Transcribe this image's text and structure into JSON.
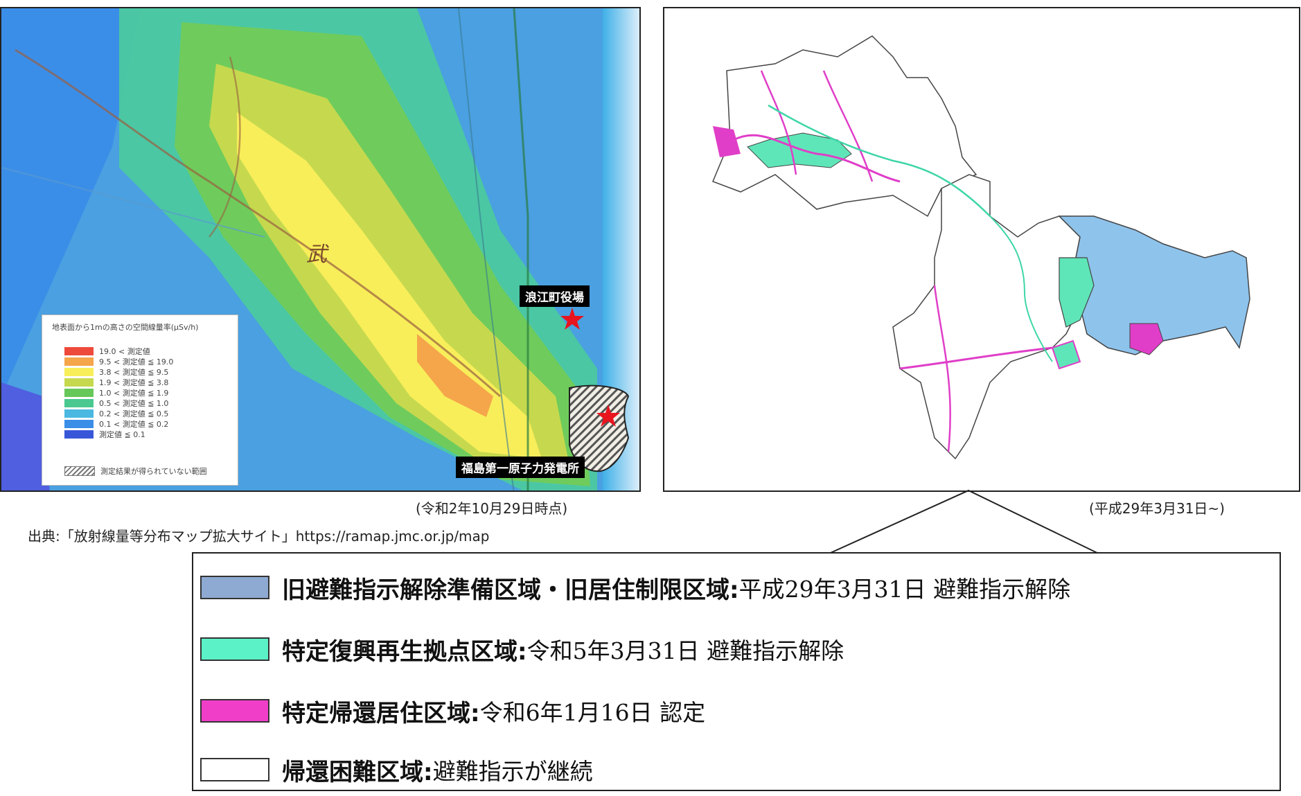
{
  "left_map": {
    "labels": {
      "town_hall": "浪江町役場",
      "nuclear_plant": "福島第一原子力発電所",
      "kanji": "武"
    },
    "legend": {
      "title": "地表面から1mの高さの空間線量率(μSv/h)",
      "rows": [
        {
          "text": "19.0 < 測定値",
          "color": "#ee4a3c"
        },
        {
          "text": "9.5 < 測定値 ≦ 19.0",
          "color": "#f5a54a"
        },
        {
          "text": "3.8 < 測定値 ≦ 9.5",
          "color": "#f8ee5a"
        },
        {
          "text": "1.9 < 測定値 ≦ 3.8",
          "color": "#c6d94e"
        },
        {
          "text": "1.0 < 測定値 ≦ 1.9",
          "color": "#67c85a"
        },
        {
          "text": "0.5 < 測定値 ≦ 1.0",
          "color": "#49c98f"
        },
        {
          "text": "0.2 < 測定値 ≦ 0.5",
          "color": "#4ab8e0"
        },
        {
          "text": "0.1 < 測定値 ≦ 0.2",
          "color": "#3b8ee8"
        },
        {
          "text": "測定値 ≦ 0.1",
          "color": "#3857d8"
        },
        {
          "text": "測定結果が得られていない範囲",
          "color": "hatched"
        }
      ]
    },
    "date_caption": "(令和2年10月29日時点)",
    "source": "出典:「放射線量等分布マップ拡大サイト」https://ramap.jmc.or.jp/map"
  },
  "right_map": {
    "date_caption": "(平成29年3月31日~)"
  },
  "zone_legend": [
    {
      "name": "旧避難指示解除準備区域・旧居住制限区域:",
      "detail": "平成29年3月31日 避難指示解除",
      "color": "#8eaad2"
    },
    {
      "name": "特定復興再生拠点区域:",
      "detail": "令和5年3月31日 避難指示解除",
      "color": "#5cf2c8"
    },
    {
      "name": "特定帰還居住区域:",
      "detail": "令和6年1月16日 認定",
      "color": "#f03ec8"
    },
    {
      "name": "帰還困難区域:",
      "detail": "避難指示が継続",
      "color": "#ffffff"
    }
  ]
}
